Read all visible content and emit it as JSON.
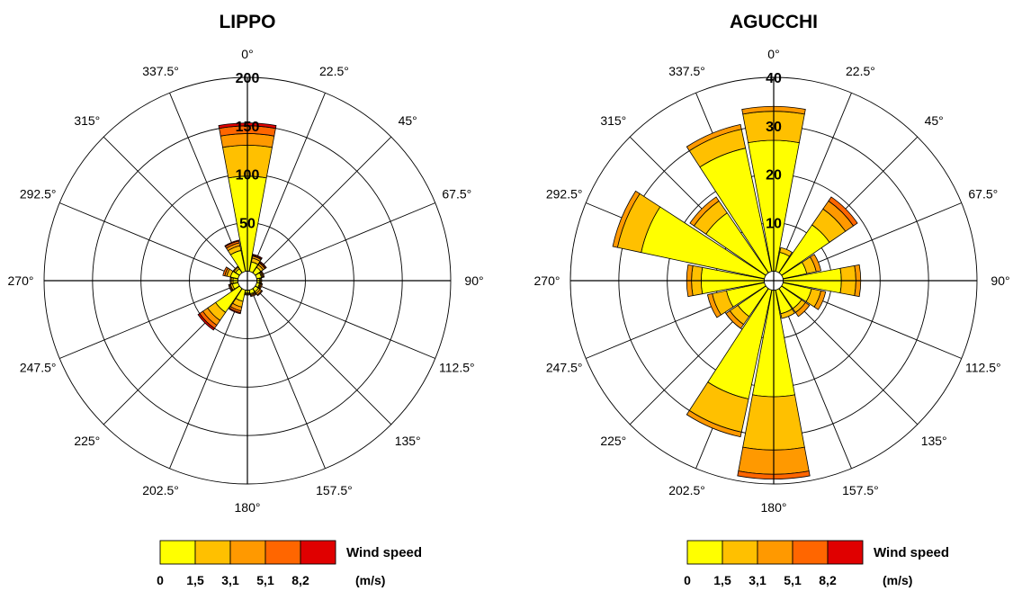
{
  "legend": {
    "title": "Wind speed",
    "unit": "(m/s)",
    "bins": [
      "0",
      "1,5",
      "3,1",
      "5,1",
      "8,2"
    ],
    "colors": [
      "#ffff00",
      "#ffc000",
      "#ff9900",
      "#ff6600",
      "#e00000"
    ]
  },
  "chart_data": [
    {
      "type": "polar-bar",
      "title": "LIPPO",
      "directions": [
        "0°",
        "22.5°",
        "45°",
        "67.5°",
        "90°",
        "112.5°",
        "135°",
        "157.5°",
        "180°",
        "202.5°",
        "225°",
        "247.5°",
        "270°",
        "292.5°",
        "315°",
        "337.5°"
      ],
      "radial_ticks": [
        "50",
        "100",
        "150",
        "200"
      ],
      "rmax": 200,
      "bins": [
        "0-1,5",
        "1,5-3,1",
        "3,1-5,1",
        "5,1-8,2",
        ">8,2"
      ],
      "sectors": [
        {
          "direction": "0°",
          "cumulative": [
            98,
            130,
            142,
            150,
            153
          ]
        },
        {
          "direction": "22.5°",
          "cumulative": [
            10,
            14,
            16,
            17,
            18
          ]
        },
        {
          "direction": "45°",
          "cumulative": [
            7,
            10,
            12,
            13,
            14
          ]
        },
        {
          "direction": "67.5°",
          "cumulative": [
            5,
            6,
            7,
            8,
            8
          ]
        },
        {
          "direction": "90°",
          "cumulative": [
            3,
            4,
            5,
            5,
            5
          ]
        },
        {
          "direction": "112.5°",
          "cumulative": [
            3,
            4,
            5,
            6,
            6
          ]
        },
        {
          "direction": "135°",
          "cumulative": [
            4,
            6,
            8,
            9,
            9
          ]
        },
        {
          "direction": "157.5°",
          "cumulative": [
            4,
            5,
            6,
            7,
            7
          ]
        },
        {
          "direction": "180°",
          "cumulative": [
            3,
            4,
            5,
            5,
            5
          ]
        },
        {
          "direction": "202.5°",
          "cumulative": [
            12,
            18,
            22,
            24,
            25
          ]
        },
        {
          "direction": "225°",
          "cumulative": [
            30,
            40,
            46,
            50,
            52
          ]
        },
        {
          "direction": "247.5°",
          "cumulative": [
            6,
            8,
            9,
            10,
            10
          ]
        },
        {
          "direction": "270°",
          "cumulative": [
            5,
            7,
            8,
            8,
            8
          ]
        },
        {
          "direction": "292.5°",
          "cumulative": [
            8,
            12,
            14,
            16,
            16
          ]
        },
        {
          "direction": "315°",
          "cumulative": [
            5,
            7,
            8,
            8,
            8
          ]
        },
        {
          "direction": "337.5°",
          "cumulative": [
            22,
            27,
            30,
            32,
            33
          ]
        }
      ]
    },
    {
      "type": "polar-bar",
      "title": "AGUCCHI",
      "directions": [
        "0°",
        "22.5°",
        "45°",
        "67.5°",
        "90°",
        "112.5°",
        "135°",
        "157.5°",
        "180°",
        "202.5°",
        "225°",
        "247.5°",
        "270°",
        "292.5°",
        "315°",
        "337.5°"
      ],
      "radial_ticks": [
        "10",
        "20",
        "30",
        "40"
      ],
      "rmax": 40,
      "bins": [
        "0-1,5",
        "1,5-3,1",
        "3,1-5,1",
        "5,1-8,2",
        ">8,2"
      ],
      "sectors": [
        {
          "direction": "0°",
          "cumulative": [
            27,
            33,
            34,
            34,
            34
          ]
        },
        {
          "direction": "22.5°",
          "cumulative": [
            4,
            5,
            5,
            5,
            5
          ]
        },
        {
          "direction": "45°",
          "cumulative": [
            12,
            16,
            18,
            19,
            19
          ]
        },
        {
          "direction": "67.5°",
          "cumulative": [
            5,
            7,
            8,
            8,
            8
          ]
        },
        {
          "direction": "90°",
          "cumulative": [
            12,
            15,
            16,
            16,
            16
          ]
        },
        {
          "direction": "112.5°",
          "cumulative": [
            6,
            8,
            9,
            9,
            9
          ]
        },
        {
          "direction": "135°",
          "cumulative": [
            5,
            6,
            7,
            7,
            7
          ]
        },
        {
          "direction": "157.5°",
          "cumulative": [
            5,
            6,
            6,
            6,
            6
          ]
        },
        {
          "direction": "180°",
          "cumulative": [
            22,
            33,
            38,
            39,
            39
          ]
        },
        {
          "direction": "202.5°",
          "cumulative": [
            23,
            30,
            31,
            31,
            31
          ]
        },
        {
          "direction": "225°",
          "cumulative": [
            7,
            9,
            10,
            10,
            10
          ]
        },
        {
          "direction": "247.5°",
          "cumulative": [
            8,
            11,
            12,
            12,
            12
          ]
        },
        {
          "direction": "270°",
          "cumulative": [
            13,
            15,
            16,
            16,
            16
          ]
        },
        {
          "direction": "292.5°",
          "cumulative": [
            26,
            31,
            32,
            32,
            32
          ]
        },
        {
          "direction": "315°",
          "cumulative": [
            15,
            18,
            19,
            19,
            19
          ]
        },
        {
          "direction": "337.5°",
          "cumulative": [
            26,
            30,
            31,
            31,
            31
          ]
        }
      ]
    }
  ]
}
